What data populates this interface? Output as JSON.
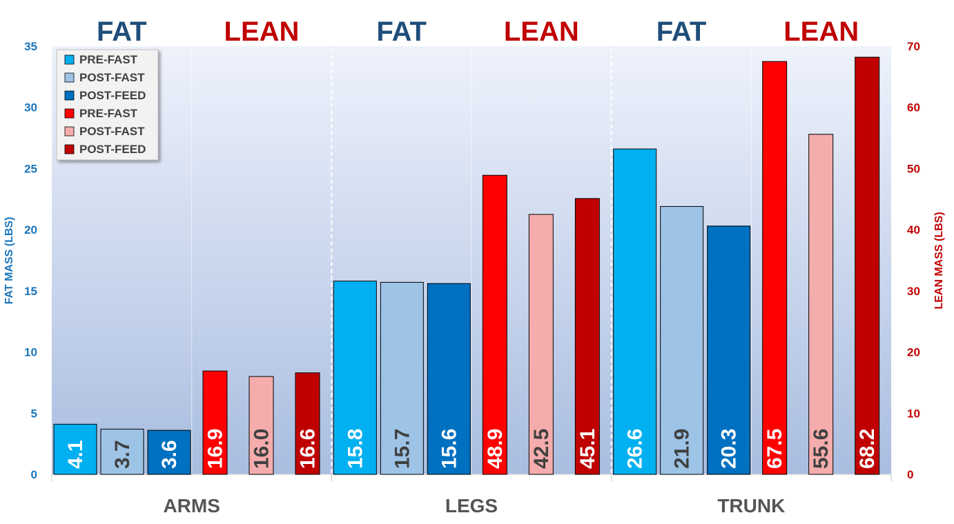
{
  "colors": {
    "fat_axis": "#1a75bb",
    "lean_axis": "#c00000",
    "fat_heading": "#1f4e79",
    "lean_heading": "#c00000",
    "bg_top": "#eef2fb",
    "bg_bottom": "#a9bde0"
  },
  "chart_data": {
    "type": "bar",
    "categories": [
      "ARMS",
      "LEGS",
      "TRUNK"
    ],
    "section_headings": [
      "FAT",
      "LEAN",
      "FAT",
      "LEAN",
      "FAT",
      "LEAN"
    ],
    "ylabel_left": "FAT MASS (LBS)",
    "ylabel_right": "LEAN MASS (LBS)",
    "ylim_left": [
      0,
      35
    ],
    "ylim_right": [
      0,
      70
    ],
    "yticks_left": [
      "0",
      "5",
      "10",
      "15",
      "20",
      "25",
      "30",
      "35"
    ],
    "yticks_right": [
      "0",
      "10",
      "20",
      "30",
      "40",
      "50",
      "60",
      "70"
    ],
    "legend_position": "top-left",
    "series": [
      {
        "name": "PRE-FAST",
        "axis": "left",
        "group": "fat",
        "color": "#00b0f0",
        "label_color": "#ffffff",
        "values": [
          4.1,
          15.8,
          26.6
        ],
        "labels": [
          "4.1",
          "15.8",
          "26.6"
        ]
      },
      {
        "name": "POST-FAST",
        "axis": "left",
        "group": "fat",
        "color": "#9dc3e6",
        "label_color": "#404040",
        "values": [
          3.7,
          15.7,
          21.9
        ],
        "labels": [
          "3.7",
          "15.7",
          "21.9"
        ]
      },
      {
        "name": "POST-FEED",
        "axis": "left",
        "group": "fat",
        "color": "#0070c0",
        "label_color": "#ffffff",
        "values": [
          3.6,
          15.6,
          20.3
        ],
        "labels": [
          "3.6",
          "15.6",
          "20.3"
        ]
      },
      {
        "name": "PRE-FAST",
        "axis": "right",
        "group": "lean",
        "color": "#ff0000",
        "label_color": "#ffffff",
        "values": [
          16.9,
          48.9,
          67.5
        ],
        "labels": [
          "16.9",
          "48.9",
          "67.5"
        ]
      },
      {
        "name": "POST-FAST",
        "axis": "right",
        "group": "lean",
        "color": "#f4acac",
        "label_color": "#404040",
        "values": [
          16.0,
          42.5,
          55.6
        ],
        "labels": [
          "16.0",
          "42.5",
          "55.6"
        ]
      },
      {
        "name": "POST-FEED",
        "axis": "right",
        "group": "lean",
        "color": "#c00000",
        "label_color": "#ffffff",
        "values": [
          16.6,
          45.1,
          68.2
        ],
        "labels": [
          "16.6",
          "45.1",
          "68.2"
        ]
      }
    ]
  }
}
